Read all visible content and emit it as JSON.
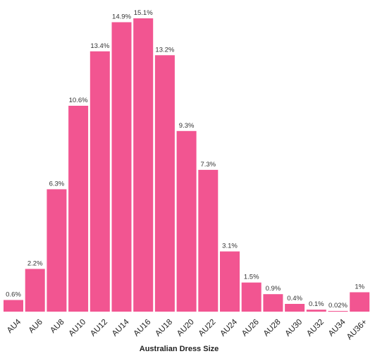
{
  "chart_data": {
    "type": "bar",
    "title": "",
    "xlabel": "Australian Dress Size",
    "ylabel": "",
    "ylim": [
      0,
      15.1
    ],
    "grid": false,
    "legend": "none",
    "bar_color": "#F25591",
    "categories": [
      "AU4",
      "AU6",
      "AU8",
      "AU10",
      "AU12",
      "AU14",
      "AU16",
      "AU18",
      "AU20",
      "AU22",
      "AU24",
      "AU26",
      "AU28",
      "AU30",
      "AU32",
      "AU34",
      "AU36+"
    ],
    "values": [
      0.6,
      2.2,
      6.3,
      10.6,
      13.4,
      14.9,
      15.1,
      13.2,
      9.3,
      7.3,
      3.1,
      1.5,
      0.9,
      0.4,
      0.1,
      0.02,
      1
    ],
    "value_labels": [
      "0.6%",
      "2.2%",
      "6.3%",
      "10.6%",
      "13.4%",
      "14.9%",
      "15.1%",
      "13.2%",
      "9.3%",
      "7.3%",
      "3.1%",
      "1.5%",
      "0.9%",
      "0.4%",
      "0.1%",
      "0.02%",
      "1%"
    ]
  }
}
